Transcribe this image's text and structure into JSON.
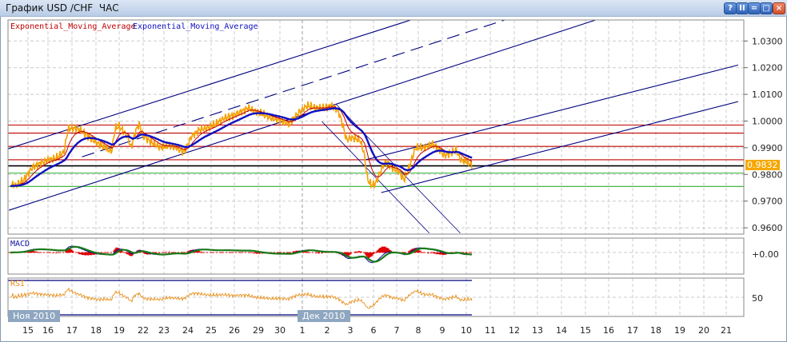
{
  "window": {
    "title": "График USD /CHF  ЧАС",
    "buttons": [
      {
        "name": "help-button",
        "label": "?"
      },
      {
        "name": "pause-button",
        "label": "II"
      },
      {
        "name": "minimize-button",
        "label": "="
      },
      {
        "name": "maximize-button",
        "label": "□"
      },
      {
        "name": "close-button",
        "label": "×"
      }
    ]
  },
  "chart_data": {
    "type": "line",
    "legend": [
      {
        "label": "Exponential_Moving_Average",
        "color": "#c00000"
      },
      {
        "label": "Exponential_Moving_Average",
        "color": "#1010c0"
      }
    ],
    "ylim": [
      0.956,
      1.036
    ],
    "yticks": [
      "1.0300",
      "1.0200",
      "1.0100",
      "1.0000",
      "0.9900",
      "0.9800",
      "0.9700",
      "0.9600"
    ],
    "current_price": "0.9832",
    "xticks": [
      "15",
      "16",
      "17",
      "18",
      "19",
      "22",
      "23",
      "24",
      "25",
      "26",
      "29",
      "30",
      "1",
      "2",
      "3",
      "6",
      "7",
      "8",
      "9",
      "10",
      "11",
      "12",
      "13",
      "14",
      "15",
      "16",
      "17",
      "18",
      "19",
      "20",
      "21"
    ],
    "month_labels": [
      "Ноя 2010",
      "Дек 2010"
    ],
    "grid": true,
    "colors": {
      "price": "#f5a000",
      "ema_fast": "#c00000",
      "ema_slow": "#1010c0",
      "resistance": "#c00000",
      "support": "#30b030",
      "current": "#000000",
      "channel": "#000080",
      "macd": "#1a7a1a",
      "rsi": "#e8901a"
    },
    "series": [
      {
        "points": [
          [
            "2010-11-12 06:00",
            0.9764
          ],
          [
            "2010-11-12 12:00",
            0.9759
          ],
          [
            "2010-11-12 20:00",
            0.978
          ],
          [
            "2010-11-15 05:00",
            0.9825
          ],
          [
            "2010-11-15 14:00",
            0.984
          ],
          [
            "2010-11-16 00:00",
            0.9855
          ],
          [
            "2010-11-16 08:00",
            0.9861
          ],
          [
            "2010-11-16 16:00",
            0.9884
          ],
          [
            "2010-11-16 20:00",
            0.9968
          ],
          [
            "2010-11-17 00:00",
            0.9974
          ],
          [
            "2010-11-17 08:00",
            0.9968
          ],
          [
            "2010-11-17 16:00",
            0.9944
          ],
          [
            "2010-11-18 00:00",
            0.992
          ],
          [
            "2010-11-18 08:00",
            0.9905
          ],
          [
            "2010-11-18 16:00",
            0.9884
          ],
          [
            "2010-11-18 20:00",
            0.9974
          ],
          [
            "2010-11-19 00:00",
            0.998
          ],
          [
            "2010-11-19 08:00",
            0.9944
          ],
          [
            "2010-11-19 12:00",
            0.99
          ],
          [
            "2010-11-19 16:00",
            0.9959
          ],
          [
            "2010-11-19 20:00",
            0.9989
          ],
          [
            "2010-11-22 00:00",
            0.9944
          ],
          [
            "2010-11-22 10:00",
            0.992
          ],
          [
            "2010-11-22 20:00",
            0.99
          ],
          [
            "2010-11-23 05:00",
            0.9908
          ],
          [
            "2010-11-23 12:00",
            0.99
          ],
          [
            "2010-11-23 20:00",
            0.9884
          ],
          [
            "2010-11-24 04:00",
            0.9944
          ],
          [
            "2010-11-24 12:00",
            0.9968
          ],
          [
            "2010-11-24 20:00",
            0.9974
          ],
          [
            "2010-11-25 05:00",
            0.9989
          ],
          [
            "2010-11-25 13:00",
            1.001
          ],
          [
            "2010-11-25 21:00",
            1.0019
          ],
          [
            "2010-11-26 06:00",
            1.0034
          ],
          [
            "2010-11-26 14:00",
            1.0049
          ],
          [
            "2010-11-26 22:00",
            1.0034
          ],
          [
            "2010-11-29 06:00",
            1.0025
          ],
          [
            "2010-11-29 15:00",
            1.001
          ],
          [
            "2010-11-30 00:00",
            1.0004
          ],
          [
            "2010-11-30 09:00",
            0.9989
          ],
          [
            "2010-11-30 13:00",
            1.0004
          ],
          [
            "2010-11-30 21:00",
            1.0034
          ],
          [
            "2010-12-01 05:00",
            1.0058
          ],
          [
            "2010-12-01 13:00",
            1.0049
          ],
          [
            "2010-12-01 21:00",
            1.0049
          ],
          [
            "2010-12-02 05:00",
            1.0058
          ],
          [
            "2010-12-02 12:00",
            1.0034
          ],
          [
            "2010-12-02 16:00",
            0.9989
          ],
          [
            "2010-12-02 20:00",
            0.9929
          ],
          [
            "2010-12-03 01:00",
            0.9938
          ],
          [
            "2010-12-03 10:00",
            0.9929
          ],
          [
            "2010-12-03 14:00",
            0.9884
          ],
          [
            "2010-12-03 18:00",
            0.978
          ],
          [
            "2010-12-03 22:00",
            0.9759
          ],
          [
            "2010-12-06 02:00",
            0.9765
          ],
          [
            "2010-12-06 07:00",
            0.981
          ],
          [
            "2010-12-06 11:00",
            0.984
          ],
          [
            "2010-12-06 15:00",
            0.9845
          ],
          [
            "2010-12-06 19:00",
            0.9825
          ],
          [
            "2010-12-07 03:00",
            0.981
          ],
          [
            "2010-12-07 08:00",
            0.978
          ],
          [
            "2010-12-07 12:00",
            0.981
          ],
          [
            "2010-12-07 21:00",
            0.99
          ],
          [
            "2010-12-08 06:00",
            0.99
          ],
          [
            "2010-12-08 14:00",
            0.9915
          ],
          [
            "2010-12-08 22:00",
            0.9891
          ],
          [
            "2010-12-09 02:00",
            0.987
          ],
          [
            "2010-12-09 10:00",
            0.9884
          ],
          [
            "2010-12-09 14:00",
            0.9891
          ],
          [
            "2010-12-09 18:00",
            0.9855
          ],
          [
            "2010-12-10 02:00",
            0.9845
          ],
          [
            "2010-12-10 06:00",
            0.9832
          ]
        ]
      }
    ],
    "horizontal_levels": [
      {
        "price": 0.9985,
        "kind": "resistance"
      },
      {
        "price": 0.9955,
        "kind": "resistance"
      },
      {
        "price": 0.9905,
        "kind": "resistance"
      },
      {
        "price": 0.9855,
        "kind": "resistance"
      },
      {
        "price": 0.9832,
        "kind": "current"
      },
      {
        "price": 0.9805,
        "kind": "support"
      },
      {
        "price": 0.9755,
        "kind": "support"
      }
    ],
    "trend_lines": [
      {
        "from": [
          "2010-11-12 04:00",
          0.9896
        ],
        "to": [
          "2010-12-07 15:00",
          1.0378
        ],
        "style": "solid"
      },
      {
        "from": [
          "2010-11-17 10:00",
          0.9866
        ],
        "to": [
          "2010-12-11 14:00",
          1.0378
        ],
        "style": "dashed"
      },
      {
        "from": [
          "2010-11-12 05:00",
          0.9666
        ],
        "to": [
          "2010-12-15 10:00",
          1.0378
        ],
        "style": "solid"
      },
      {
        "from": [
          "2010-12-06 08:00",
          0.9732
        ],
        "to": [
          "2010-12-21 12:00",
          1.0073
        ],
        "style": "solid"
      },
      {
        "from": [
          "2010-12-03 16:00",
          0.9855
        ],
        "to": [
          "2010-12-21 12:00",
          1.021
        ],
        "style": "solid"
      },
      {
        "from": [
          "2010-12-02 09:00",
          1.0064
        ],
        "to": [
          "2010-12-09 18:00",
          0.958
        ],
        "style": "thin"
      },
      {
        "from": [
          "2010-12-01 19:00",
          0.9998
        ],
        "to": [
          "2010-12-08 11:00",
          0.958
        ],
        "style": "thin"
      }
    ],
    "macd": {
      "label": "MACD",
      "tick": "+0.00"
    },
    "rsi": {
      "label": "RSI",
      "tick": "50"
    }
  }
}
